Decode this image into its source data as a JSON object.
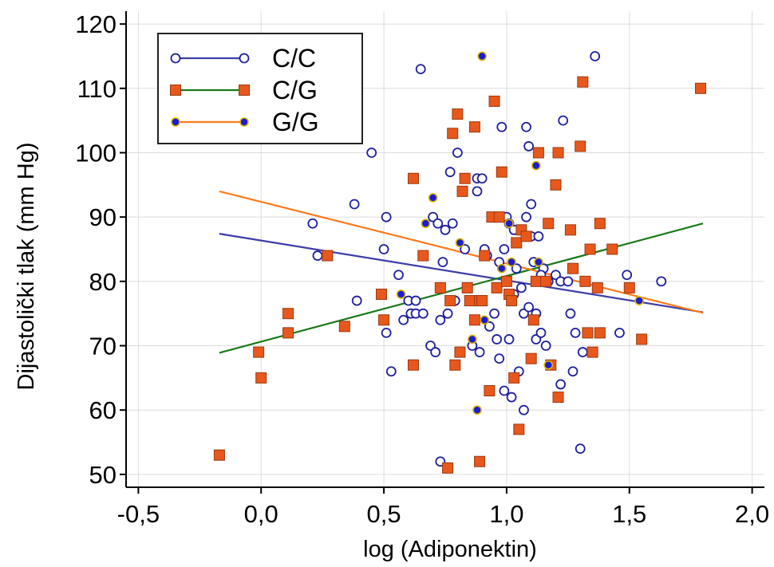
{
  "chart_data": {
    "type": "scatter",
    "xlabel": "log (Adiponektin)",
    "ylabel": "Dijastolički tlak (mm Hg)",
    "xlim": [
      -0.55,
      2.05
    ],
    "ylim": [
      48,
      122
    ],
    "x_ticks": [
      -0.5,
      0.0,
      0.5,
      1.0,
      1.5,
      2.0
    ],
    "x_tick_labels": [
      "-0,5",
      "0,0",
      "0,5",
      "1,0",
      "1,5",
      "2,0"
    ],
    "y_ticks": [
      50,
      60,
      70,
      80,
      90,
      100,
      110,
      120
    ],
    "y_tick_labels": [
      "50",
      "60",
      "70",
      "80",
      "90",
      "100",
      "110",
      "120"
    ],
    "grid": true,
    "legend_position": "top-left",
    "series": [
      {
        "name": "C/C",
        "marker": "circle-open",
        "color": "#1f1f9e",
        "fill": "#ffffff",
        "line_color": "#3d3da8",
        "trend": [
          [
            -0.17,
            87.4
          ],
          [
            1.8,
            75.2
          ]
        ],
        "points": [
          [
            0.21,
            89
          ],
          [
            0.23,
            84
          ],
          [
            0.38,
            92
          ],
          [
            0.39,
            77
          ],
          [
            0.45,
            100
          ],
          [
            0.5,
            85
          ],
          [
            0.51,
            90
          ],
          [
            0.51,
            72
          ],
          [
            0.53,
            66
          ],
          [
            0.56,
            81
          ],
          [
            0.58,
            74
          ],
          [
            0.6,
            77
          ],
          [
            0.61,
            75
          ],
          [
            0.63,
            77
          ],
          [
            0.63,
            75
          ],
          [
            0.65,
            113
          ],
          [
            0.69,
            70
          ],
          [
            0.7,
            90
          ],
          [
            0.71,
            69
          ],
          [
            0.72,
            89
          ],
          [
            0.73,
            74
          ],
          [
            0.73,
            52
          ],
          [
            0.74,
            83
          ],
          [
            0.75,
            88
          ],
          [
            0.76,
            75
          ],
          [
            0.77,
            97
          ],
          [
            0.78,
            89
          ],
          [
            0.79,
            77
          ],
          [
            0.8,
            100
          ],
          [
            0.83,
            85
          ],
          [
            0.86,
            70
          ],
          [
            0.88,
            94
          ],
          [
            0.88,
            96
          ],
          [
            0.89,
            69
          ],
          [
            0.9,
            96
          ],
          [
            0.91,
            85
          ],
          [
            0.92,
            84
          ],
          [
            0.93,
            73
          ],
          [
            0.95,
            75
          ],
          [
            0.96,
            71
          ],
          [
            0.97,
            68
          ],
          [
            0.97,
            83
          ],
          [
            0.98,
            104
          ],
          [
            0.99,
            85
          ],
          [
            0.99,
            63
          ],
          [
            1.0,
            90
          ],
          [
            1.01,
            71
          ],
          [
            1.01,
            89
          ],
          [
            1.02,
            62
          ],
          [
            1.03,
            78
          ],
          [
            1.04,
            82
          ],
          [
            1.05,
            66
          ],
          [
            1.06,
            79
          ],
          [
            1.07,
            60
          ],
          [
            1.07,
            75
          ],
          [
            1.08,
            104
          ],
          [
            1.08,
            90
          ],
          [
            1.09,
            101
          ],
          [
            1.09,
            76
          ],
          [
            1.1,
            92
          ],
          [
            1.1,
            87
          ],
          [
            1.11,
            83
          ],
          [
            1.12,
            75
          ],
          [
            1.12,
            71
          ],
          [
            1.13,
            87
          ],
          [
            1.14,
            72
          ],
          [
            1.15,
            82
          ],
          [
            1.16,
            70
          ],
          [
            1.17,
            80
          ],
          [
            1.18,
            67
          ],
          [
            1.2,
            81
          ],
          [
            1.22,
            64
          ],
          [
            1.22,
            80
          ],
          [
            1.23,
            105
          ],
          [
            1.25,
            80
          ],
          [
            1.26,
            75
          ],
          [
            1.27,
            66
          ],
          [
            1.28,
            72
          ],
          [
            1.3,
            54
          ],
          [
            1.31,
            69
          ],
          [
            1.33,
            72
          ],
          [
            1.36,
            115
          ],
          [
            1.46,
            72
          ],
          [
            1.49,
            81
          ],
          [
            1.63,
            80
          ],
          [
            0.91,
            84
          ],
          [
            1.03,
            88
          ],
          [
            0.66,
            75
          ],
          [
            1.14,
            81
          ]
        ]
      },
      {
        "name": "C/G",
        "marker": "square-filled",
        "color": "#e8581c",
        "fill": "#e8581c",
        "line_color": "#1a7a1a",
        "trend": [
          [
            -0.17,
            68.9
          ],
          [
            1.8,
            89.0
          ]
        ],
        "points": [
          [
            -0.17,
            53
          ],
          [
            -0.01,
            69
          ],
          [
            0.0,
            65
          ],
          [
            0.11,
            75
          ],
          [
            0.11,
            72
          ],
          [
            0.27,
            84
          ],
          [
            0.34,
            73
          ],
          [
            0.49,
            78
          ],
          [
            0.5,
            74
          ],
          [
            0.62,
            96
          ],
          [
            0.62,
            67
          ],
          [
            0.66,
            84
          ],
          [
            0.73,
            79
          ],
          [
            0.76,
            51
          ],
          [
            0.77,
            77
          ],
          [
            0.78,
            103
          ],
          [
            0.79,
            67
          ],
          [
            0.8,
            106
          ],
          [
            0.81,
            69
          ],
          [
            0.82,
            94
          ],
          [
            0.83,
            96
          ],
          [
            0.84,
            79
          ],
          [
            0.85,
            77
          ],
          [
            0.87,
            74
          ],
          [
            0.87,
            104
          ],
          [
            0.89,
            77
          ],
          [
            0.89,
            52
          ],
          [
            0.9,
            77
          ],
          [
            0.91,
            84
          ],
          [
            0.93,
            63
          ],
          [
            0.94,
            90
          ],
          [
            0.95,
            108
          ],
          [
            0.96,
            79
          ],
          [
            0.97,
            90
          ],
          [
            0.98,
            97
          ],
          [
            1.0,
            80
          ],
          [
            1.01,
            78
          ],
          [
            1.02,
            77
          ],
          [
            1.03,
            65
          ],
          [
            1.04,
            86
          ],
          [
            1.05,
            57
          ],
          [
            1.06,
            88
          ],
          [
            1.08,
            87
          ],
          [
            1.1,
            68
          ],
          [
            1.11,
            74
          ],
          [
            1.12,
            80
          ],
          [
            1.13,
            100
          ],
          [
            1.16,
            80
          ],
          [
            1.17,
            89
          ],
          [
            1.18,
            67
          ],
          [
            1.2,
            95
          ],
          [
            1.21,
            100
          ],
          [
            1.21,
            62
          ],
          [
            1.26,
            88
          ],
          [
            1.27,
            82
          ],
          [
            1.3,
            101
          ],
          [
            1.31,
            111
          ],
          [
            1.32,
            80
          ],
          [
            1.33,
            72
          ],
          [
            1.34,
            85
          ],
          [
            1.35,
            69
          ],
          [
            1.37,
            79
          ],
          [
            1.38,
            89
          ],
          [
            1.38,
            72
          ],
          [
            1.43,
            85
          ],
          [
            1.5,
            79
          ],
          [
            1.55,
            71
          ],
          [
            1.79,
            110
          ]
        ]
      },
      {
        "name": "G/G",
        "marker": "circle-filled",
        "color": "#d8b400",
        "fill": "#1c1cd0",
        "line_color": "#ff7a1a",
        "trend": [
          [
            -0.17,
            94.0
          ],
          [
            1.8,
            75.1
          ]
        ],
        "points": [
          [
            0.57,
            78
          ],
          [
            0.67,
            89
          ],
          [
            0.7,
            93
          ],
          [
            0.81,
            86
          ],
          [
            0.86,
            71
          ],
          [
            0.88,
            60
          ],
          [
            0.9,
            115
          ],
          [
            0.91,
            74
          ],
          [
            0.98,
            82
          ],
          [
            1.01,
            89
          ],
          [
            1.02,
            83
          ],
          [
            1.12,
            98
          ],
          [
            1.13,
            83
          ],
          [
            1.17,
            67
          ],
          [
            1.54,
            77
          ]
        ]
      }
    ]
  }
}
